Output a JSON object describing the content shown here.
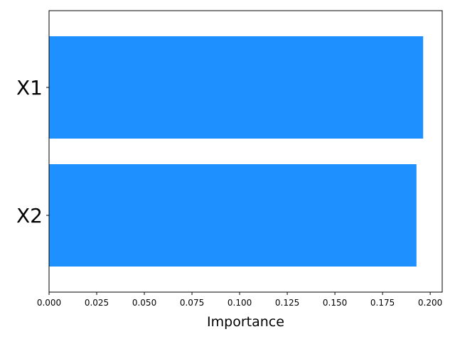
{
  "chart_data": {
    "type": "bar",
    "orientation": "horizontal",
    "categories": [
      "X1",
      "X2"
    ],
    "values": [
      0.1963,
      0.1928
    ],
    "xlabel": "Importance",
    "ylabel": "",
    "title": "",
    "xlim": [
      0,
      0.2063
    ],
    "xticks": [
      "0.000",
      "0.025",
      "0.050",
      "0.075",
      "0.100",
      "0.125",
      "0.150",
      "0.175",
      "0.200"
    ],
    "bar_color": "#1e90ff",
    "grid": false,
    "legend": "none"
  }
}
